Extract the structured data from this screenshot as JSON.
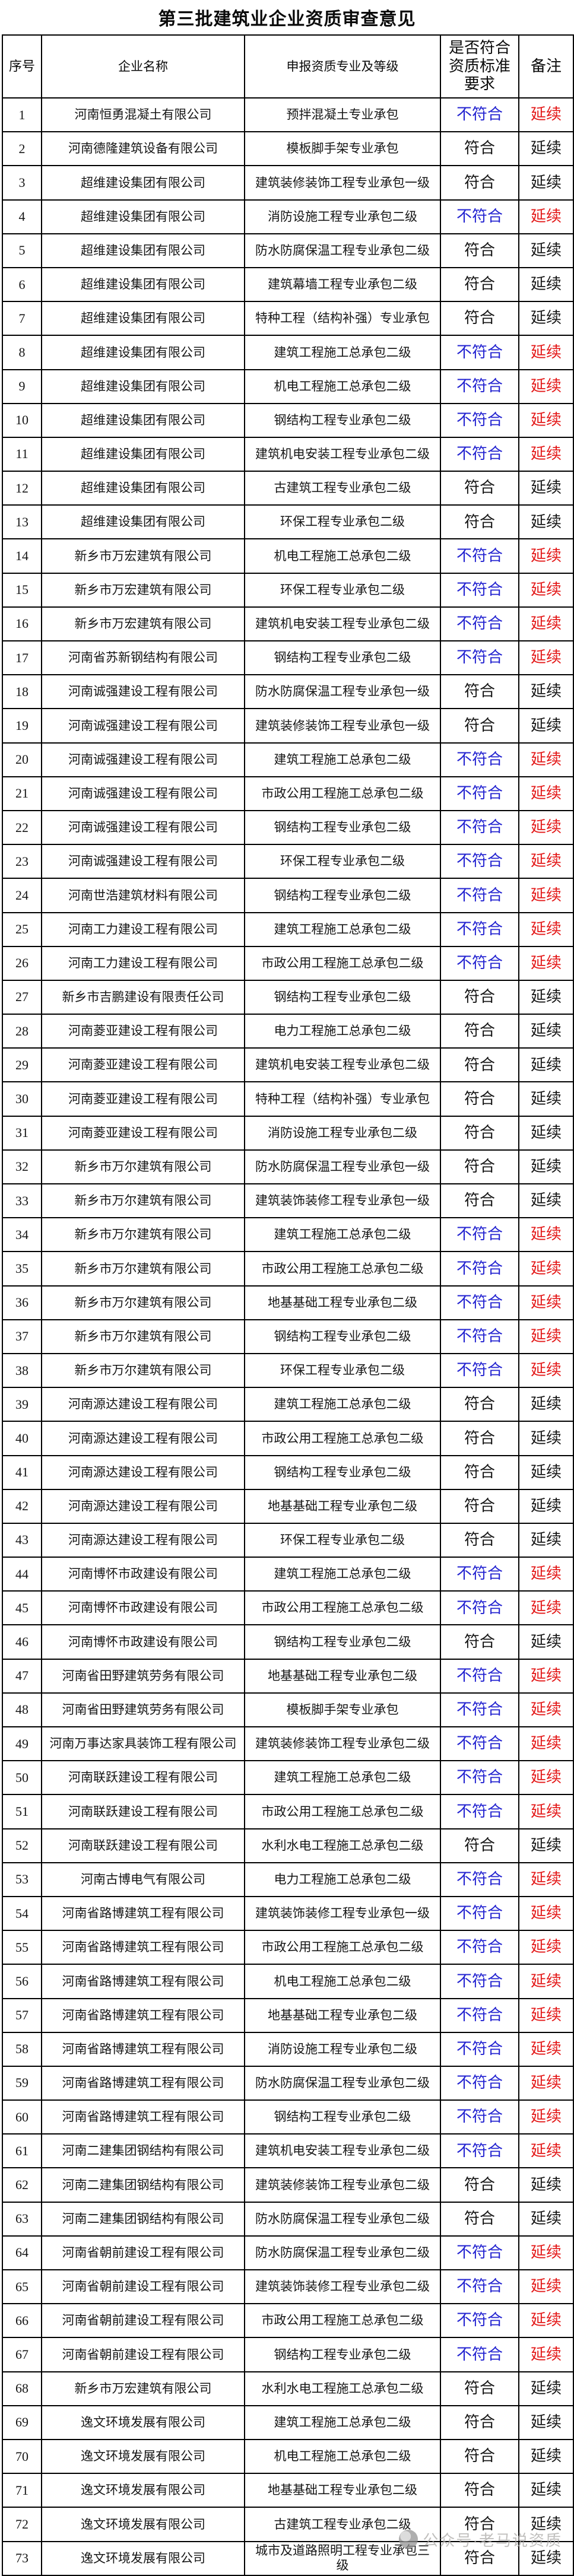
{
  "title": "第三批建筑业企业资质审查意见",
  "colors": {
    "noncompliant_blue": "#2222d0",
    "flagged_red": "#e31717",
    "body_text": "#151515",
    "border": "#000000",
    "watermark_gray": "#a9a7a5"
  },
  "watermark": {
    "text": "公众号·老马说资质",
    "icon": "official-account-logo"
  },
  "table": {
    "headers": [
      "序号",
      "企业名称",
      "申报资质专业及等级",
      "是否符合资质标准要求",
      "备注"
    ],
    "rows": [
      {
        "no": "1",
        "company": "河南恒勇混凝土有限公司",
        "qualification": "预拌混凝土专业承包",
        "verdict": "不符合",
        "remark": "延续",
        "compliant": false
      },
      {
        "no": "2",
        "company": "河南德隆建筑设备有限公司",
        "qualification": "模板脚手架专业承包",
        "verdict": "符合",
        "remark": "延续",
        "compliant": true
      },
      {
        "no": "3",
        "company": "超维建设集团有限公司",
        "qualification": "建筑装修装饰工程专业承包一级",
        "verdict": "符合",
        "remark": "延续",
        "compliant": true
      },
      {
        "no": "4",
        "company": "超维建设集团有限公司",
        "qualification": "消防设施工程专业承包二级",
        "verdict": "不符合",
        "remark": "延续",
        "compliant": false
      },
      {
        "no": "5",
        "company": "超维建设集团有限公司",
        "qualification": "防水防腐保温工程专业承包二级",
        "verdict": "符合",
        "remark": "延续",
        "compliant": true
      },
      {
        "no": "6",
        "company": "超维建设集团有限公司",
        "qualification": "建筑幕墙工程专业承包二级",
        "verdict": "符合",
        "remark": "延续",
        "compliant": true
      },
      {
        "no": "7",
        "company": "超维建设集团有限公司",
        "qualification": "特种工程（结构补强）专业承包",
        "verdict": "符合",
        "remark": "延续",
        "compliant": true
      },
      {
        "no": "8",
        "company": "超维建设集团有限公司",
        "qualification": "建筑工程施工总承包二级",
        "verdict": "不符合",
        "remark": "延续",
        "compliant": false
      },
      {
        "no": "9",
        "company": "超维建设集团有限公司",
        "qualification": "机电工程施工总承包二级",
        "verdict": "不符合",
        "remark": "延续",
        "compliant": false
      },
      {
        "no": "10",
        "company": "超维建设集团有限公司",
        "qualification": "钢结构工程专业承包二级",
        "verdict": "不符合",
        "remark": "延续",
        "compliant": false
      },
      {
        "no": "11",
        "company": "超维建设集团有限公司",
        "qualification": "建筑机电安装工程专业承包二级",
        "verdict": "不符合",
        "remark": "延续",
        "compliant": false
      },
      {
        "no": "12",
        "company": "超维建设集团有限公司",
        "qualification": "古建筑工程专业承包二级",
        "verdict": "符合",
        "remark": "延续",
        "compliant": true
      },
      {
        "no": "13",
        "company": "超维建设集团有限公司",
        "qualification": "环保工程专业承包二级",
        "verdict": "符合",
        "remark": "延续",
        "compliant": true
      },
      {
        "no": "14",
        "company": "新乡市万宏建筑有限公司",
        "qualification": "机电工程施工总承包二级",
        "verdict": "不符合",
        "remark": "延续",
        "compliant": false
      },
      {
        "no": "15",
        "company": "新乡市万宏建筑有限公司",
        "qualification": "环保工程专业承包二级",
        "verdict": "不符合",
        "remark": "延续",
        "compliant": false
      },
      {
        "no": "16",
        "company": "新乡市万宏建筑有限公司",
        "qualification": "建筑机电安装工程专业承包二级",
        "verdict": "不符合",
        "remark": "延续",
        "compliant": false
      },
      {
        "no": "17",
        "company": "河南省苏新钢结构有限公司",
        "qualification": "钢结构工程专业承包二级",
        "verdict": "不符合",
        "remark": "延续",
        "compliant": false
      },
      {
        "no": "18",
        "company": "河南诚强建设工程有限公司",
        "qualification": "防水防腐保温工程专业承包一级",
        "verdict": "符合",
        "remark": "延续",
        "compliant": true
      },
      {
        "no": "19",
        "company": "河南诚强建设工程有限公司",
        "qualification": "建筑装修装饰工程专业承包一级",
        "verdict": "符合",
        "remark": "延续",
        "compliant": true
      },
      {
        "no": "20",
        "company": "河南诚强建设工程有限公司",
        "qualification": "建筑工程施工总承包二级",
        "verdict": "不符合",
        "remark": "延续",
        "compliant": false
      },
      {
        "no": "21",
        "company": "河南诚强建设工程有限公司",
        "qualification": "市政公用工程施工总承包二级",
        "verdict": "不符合",
        "remark": "延续",
        "compliant": false
      },
      {
        "no": "22",
        "company": "河南诚强建设工程有限公司",
        "qualification": "钢结构工程专业承包二级",
        "verdict": "不符合",
        "remark": "延续",
        "compliant": false
      },
      {
        "no": "23",
        "company": "河南诚强建设工程有限公司",
        "qualification": "环保工程专业承包二级",
        "verdict": "不符合",
        "remark": "延续",
        "compliant": false
      },
      {
        "no": "24",
        "company": "河南世浩建筑材料有限公司",
        "qualification": "钢结构工程专业承包二级",
        "verdict": "不符合",
        "remark": "延续",
        "compliant": false
      },
      {
        "no": "25",
        "company": "河南工力建设工程有限公司",
        "qualification": "建筑工程施工总承包二级",
        "verdict": "不符合",
        "remark": "延续",
        "compliant": false
      },
      {
        "no": "26",
        "company": "河南工力建设工程有限公司",
        "qualification": "市政公用工程施工总承包二级",
        "verdict": "不符合",
        "remark": "延续",
        "compliant": false
      },
      {
        "no": "27",
        "company": "新乡市吉鹏建设有限责任公司",
        "qualification": "钢结构工程专业承包二级",
        "verdict": "符合",
        "remark": "延续",
        "compliant": true
      },
      {
        "no": "28",
        "company": "河南菱亚建设工程有限公司",
        "qualification": "电力工程施工总承包二级",
        "verdict": "符合",
        "remark": "延续",
        "compliant": true
      },
      {
        "no": "29",
        "company": "河南菱亚建设工程有限公司",
        "qualification": "建筑机电安装工程专业承包二级",
        "verdict": "符合",
        "remark": "延续",
        "compliant": true
      },
      {
        "no": "30",
        "company": "河南菱亚建设工程有限公司",
        "qualification": "特种工程（结构补强）专业承包",
        "verdict": "符合",
        "remark": "延续",
        "compliant": true
      },
      {
        "no": "31",
        "company": "河南菱亚建设工程有限公司",
        "qualification": "消防设施工程专业承包二级",
        "verdict": "符合",
        "remark": "延续",
        "compliant": true
      },
      {
        "no": "32",
        "company": "新乡市万尔建筑有限公司",
        "qualification": "防水防腐保温工程专业承包一级",
        "verdict": "符合",
        "remark": "延续",
        "compliant": true
      },
      {
        "no": "33",
        "company": "新乡市万尔建筑有限公司",
        "qualification": "建筑装饰装修工程专业承包一级",
        "verdict": "符合",
        "remark": "延续",
        "compliant": true
      },
      {
        "no": "34",
        "company": "新乡市万尔建筑有限公司",
        "qualification": "建筑工程施工总承包二级",
        "verdict": "不符合",
        "remark": "延续",
        "compliant": false
      },
      {
        "no": "35",
        "company": "新乡市万尔建筑有限公司",
        "qualification": "市政公用工程施工总承包二级",
        "verdict": "不符合",
        "remark": "延续",
        "compliant": false
      },
      {
        "no": "36",
        "company": "新乡市万尔建筑有限公司",
        "qualification": "地基基础工程专业承包二级",
        "verdict": "不符合",
        "remark": "延续",
        "compliant": false
      },
      {
        "no": "37",
        "company": "新乡市万尔建筑有限公司",
        "qualification": "钢结构工程专业承包二级",
        "verdict": "不符合",
        "remark": "延续",
        "compliant": false
      },
      {
        "no": "38",
        "company": "新乡市万尔建筑有限公司",
        "qualification": "环保工程专业承包二级",
        "verdict": "不符合",
        "remark": "延续",
        "compliant": false
      },
      {
        "no": "39",
        "company": "河南源达建设工程有限公司",
        "qualification": "建筑工程施工总承包二级",
        "verdict": "符合",
        "remark": "延续",
        "compliant": true
      },
      {
        "no": "40",
        "company": "河南源达建设工程有限公司",
        "qualification": "市政公用工程施工总承包二级",
        "verdict": "符合",
        "remark": "延续",
        "compliant": true
      },
      {
        "no": "41",
        "company": "河南源达建设工程有限公司",
        "qualification": "钢结构工程专业承包二级",
        "verdict": "符合",
        "remark": "延续",
        "compliant": true
      },
      {
        "no": "42",
        "company": "河南源达建设工程有限公司",
        "qualification": "地基基础工程专业承包二级",
        "verdict": "符合",
        "remark": "延续",
        "compliant": true
      },
      {
        "no": "43",
        "company": "河南源达建设工程有限公司",
        "qualification": "环保工程专业承包二级",
        "verdict": "符合",
        "remark": "延续",
        "compliant": true
      },
      {
        "no": "44",
        "company": "河南博怀市政建设有限公司",
        "qualification": "建筑工程施工总承包二级",
        "verdict": "不符合",
        "remark": "延续",
        "compliant": false
      },
      {
        "no": "45",
        "company": "河南博怀市政建设有限公司",
        "qualification": "市政公用工程施工总承包二级",
        "verdict": "不符合",
        "remark": "延续",
        "compliant": false
      },
      {
        "no": "46",
        "company": "河南博怀市政建设有限公司",
        "qualification": "钢结构工程专业承包二级",
        "verdict": "符合",
        "remark": "延续",
        "compliant": true
      },
      {
        "no": "47",
        "company": "河南省田野建筑劳务有限公司",
        "qualification": "地基基础工程专业承包二级",
        "verdict": "不符合",
        "remark": "延续",
        "compliant": false
      },
      {
        "no": "48",
        "company": "河南省田野建筑劳务有限公司",
        "qualification": "模板脚手架专业承包",
        "verdict": "不符合",
        "remark": "延续",
        "compliant": false
      },
      {
        "no": "49",
        "company": "河南万事达家具装饰工程有限公司",
        "qualification": "建筑装修装饰工程专业承包二级",
        "verdict": "不符合",
        "remark": "延续",
        "compliant": false
      },
      {
        "no": "50",
        "company": "河南联跃建设工程有限公司",
        "qualification": "建筑工程施工总承包二级",
        "verdict": "不符合",
        "remark": "延续",
        "compliant": false
      },
      {
        "no": "51",
        "company": "河南联跃建设工程有限公司",
        "qualification": "市政公用工程施工总承包二级",
        "verdict": "不符合",
        "remark": "延续",
        "compliant": false
      },
      {
        "no": "52",
        "company": "河南联跃建设工程有限公司",
        "qualification": "水利水电工程施工总承包二级",
        "verdict": "符合",
        "remark": "延续",
        "compliant": true
      },
      {
        "no": "53",
        "company": "河南古博电气有限公司",
        "qualification": "电力工程施工总承包二级",
        "verdict": "不符合",
        "remark": "延续",
        "compliant": false
      },
      {
        "no": "54",
        "company": "河南省路博建筑工程有限公司",
        "qualification": "建筑装饰装修工程专业承包一级",
        "verdict": "不符合",
        "remark": "延续",
        "compliant": false
      },
      {
        "no": "55",
        "company": "河南省路博建筑工程有限公司",
        "qualification": "市政公用工程施工总承包二级",
        "verdict": "不符合",
        "remark": "延续",
        "compliant": false
      },
      {
        "no": "56",
        "company": "河南省路博建筑工程有限公司",
        "qualification": "机电工程施工总承包二级",
        "verdict": "不符合",
        "remark": "延续",
        "compliant": false
      },
      {
        "no": "57",
        "company": "河南省路博建筑工程有限公司",
        "qualification": "地基基础工程专业承包二级",
        "verdict": "不符合",
        "remark": "延续",
        "compliant": false
      },
      {
        "no": "58",
        "company": "河南省路博建筑工程有限公司",
        "qualification": "消防设施工程专业承包二级",
        "verdict": "不符合",
        "remark": "延续",
        "compliant": false
      },
      {
        "no": "59",
        "company": "河南省路博建筑工程有限公司",
        "qualification": "防水防腐保温工程专业承包二级",
        "verdict": "不符合",
        "remark": "延续",
        "compliant": false
      },
      {
        "no": "60",
        "company": "河南省路博建筑工程有限公司",
        "qualification": "钢结构工程专业承包二级",
        "verdict": "不符合",
        "remark": "延续",
        "compliant": false
      },
      {
        "no": "61",
        "company": "河南二建集团钢结构有限公司",
        "qualification": "建筑机电安装工程专业承包二级",
        "verdict": "不符合",
        "remark": "延续",
        "compliant": false
      },
      {
        "no": "62",
        "company": "河南二建集团钢结构有限公司",
        "qualification": "建筑装修装饰工程专业承包二级",
        "verdict": "符合",
        "remark": "延续",
        "compliant": true
      },
      {
        "no": "63",
        "company": "河南二建集团钢结构有限公司",
        "qualification": "防水防腐保温工程专业承包二级",
        "verdict": "符合",
        "remark": "延续",
        "compliant": true
      },
      {
        "no": "64",
        "company": "河南省朝前建设工程有限公司",
        "qualification": "防水防腐保温工程专业承包二级",
        "verdict": "不符合",
        "remark": "延续",
        "compliant": false
      },
      {
        "no": "65",
        "company": "河南省朝前建设工程有限公司",
        "qualification": "建筑装饰装修工程专业承包二级",
        "verdict": "不符合",
        "remark": "延续",
        "compliant": false
      },
      {
        "no": "66",
        "company": "河南省朝前建设工程有限公司",
        "qualification": "市政公用工程施工总承包二级",
        "verdict": "不符合",
        "remark": "延续",
        "compliant": false
      },
      {
        "no": "67",
        "company": "河南省朝前建设工程有限公司",
        "qualification": "钢结构工程专业承包二级",
        "verdict": "不符合",
        "remark": "延续",
        "compliant": false
      },
      {
        "no": "68",
        "company": "新乡市万宏建筑有限公司",
        "qualification": "水利水电工程施工总承包二级",
        "verdict": "符合",
        "remark": "延续",
        "compliant": true
      },
      {
        "no": "69",
        "company": "逸文环境发展有限公司",
        "qualification": "建筑工程施工总承包二级",
        "verdict": "符合",
        "remark": "延续",
        "compliant": true
      },
      {
        "no": "70",
        "company": "逸文环境发展有限公司",
        "qualification": "机电工程施工总承包二级",
        "verdict": "符合",
        "remark": "延续",
        "compliant": true
      },
      {
        "no": "71",
        "company": "逸文环境发展有限公司",
        "qualification": "地基基础工程专业承包二级",
        "verdict": "符合",
        "remark": "延续",
        "compliant": true
      },
      {
        "no": "72",
        "company": "逸文环境发展有限公司",
        "qualification": "古建筑工程专业承包二级",
        "verdict": "符合",
        "remark": "延续",
        "compliant": true
      },
      {
        "no": "73",
        "company": "逸文环境发展有限公司",
        "qualification": "城市及道路照明工程专业承包三级",
        "verdict": "符合",
        "remark": "延续",
        "compliant": true
      }
    ]
  }
}
